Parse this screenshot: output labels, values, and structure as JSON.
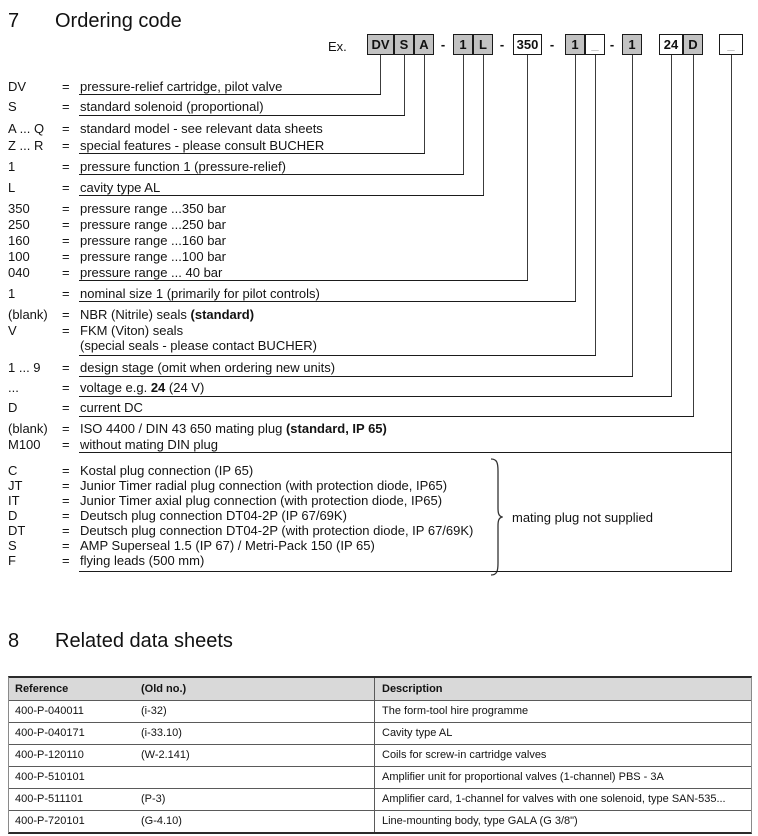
{
  "section7": {
    "number": "7",
    "title": "Ordering code",
    "example_label": "Ex.",
    "equals": "=",
    "separator": "-",
    "boxes": [
      {
        "label": "DV",
        "filled": true
      },
      {
        "label": "S",
        "filled": true
      },
      {
        "label": "A",
        "filled": true
      },
      {
        "label": "1",
        "filled": true
      },
      {
        "label": "L",
        "filled": true
      },
      {
        "label": "350",
        "filled": false
      },
      {
        "label": "1",
        "filled": true
      },
      {
        "label": "_",
        "filled": false
      },
      {
        "label": "1",
        "filled": true
      },
      {
        "label": "24",
        "filled": false
      },
      {
        "label": "D",
        "filled": true
      },
      {
        "label": "_",
        "filled": false
      }
    ],
    "rows": [
      {
        "code": "DV",
        "desc": "pressure-relief cartridge, pilot valve"
      },
      {
        "code": "S",
        "desc": "standard solenoid (proportional)"
      },
      {
        "code": "A ... Q",
        "desc": "standard model - see relevant data sheets"
      },
      {
        "code": "Z ... R",
        "desc": "special features - please consult BUCHER"
      },
      {
        "code": "1",
        "desc": "pressure function 1 (pressure-relief)"
      },
      {
        "code": "L",
        "desc": "cavity type AL"
      },
      {
        "code": "350",
        "desc": "pressure range ...350 bar"
      },
      {
        "code": "250",
        "desc": "pressure range ...250 bar"
      },
      {
        "code": "160",
        "desc": "pressure range ...160 bar"
      },
      {
        "code": "100",
        "desc": "pressure range ...100 bar"
      },
      {
        "code": "040",
        "desc": "pressure range ... 40 bar"
      },
      {
        "code": "1",
        "desc": "nominal size 1 (primarily for pilot controls)"
      },
      {
        "code": "(blank)",
        "desc_pre": "NBR (Nitrile) seals  ",
        "desc_bold": "(standard)",
        "desc_post": ""
      },
      {
        "code": "V",
        "desc": "FKM (Viton) seals"
      },
      {
        "code": "",
        "desc": "(special seals - please contact BUCHER)"
      },
      {
        "code": "1 ... 9",
        "desc": "design stage (omit when ordering new units)"
      },
      {
        "code": "...",
        "desc_pre": "voltage e.g. ",
        "desc_bold": "24",
        "desc_post": " (24 V)"
      },
      {
        "code": "D",
        "desc": "current  DC"
      },
      {
        "code": "(blank)",
        "desc_pre": "ISO 4400 / DIN 43 650 mating plug ",
        "desc_bold": "(standard, IP 65)",
        "desc_post": ""
      },
      {
        "code": "M100",
        "desc": "without mating DIN plug"
      },
      {
        "code": "C",
        "desc": "Kostal plug connection (IP 65)"
      },
      {
        "code": "JT",
        "desc": "Junior Timer radial plug connection (with protection diode, IP65)"
      },
      {
        "code": "IT",
        "desc": "Junior Timer axial plug connection (with protection diode, IP65)"
      },
      {
        "code": "D",
        "desc": "Deutsch plug connection DT04-2P (IP 67/69K)"
      },
      {
        "code": "DT",
        "desc": "Deutsch plug connection DT04-2P (with protection diode, IP 67/69K)"
      },
      {
        "code": "S",
        "desc": "AMP Superseal 1.5 (IP 67) / Metri-Pack 150 (IP 65)"
      },
      {
        "code": "F",
        "desc": "flying leads (500 mm)"
      }
    ],
    "brace_label": "mating plug not supplied"
  },
  "section8": {
    "number": "8",
    "title": "Related data sheets",
    "table": {
      "headers": [
        "Reference",
        "(Old no.)",
        "Description"
      ],
      "rows": [
        [
          "400-P-040011",
          "(i-32)",
          "The form-tool hire programme"
        ],
        [
          "400-P-040171",
          "(i-33.10)",
          "Cavity type AL"
        ],
        [
          "400-P-120110",
          "(W-2.141)",
          "Coils for screw-in cartridge valves"
        ],
        [
          "400-P-510101",
          "",
          "Amplifier unit for proportional valves (1-channel) PBS - 3A"
        ],
        [
          "400-P-511101",
          "(P-3)",
          "Amplifier card, 1-channel for valves with one solenoid, type SAN-535..."
        ],
        [
          "400-P-720101",
          "(G-4.10)",
          "Line-mounting body, type GALA  (G 3/8\")"
        ]
      ]
    }
  },
  "colors": {
    "box_fill": "#c2c2c2",
    "table_header_bg": "#d9d9d9",
    "line": "#333333"
  }
}
